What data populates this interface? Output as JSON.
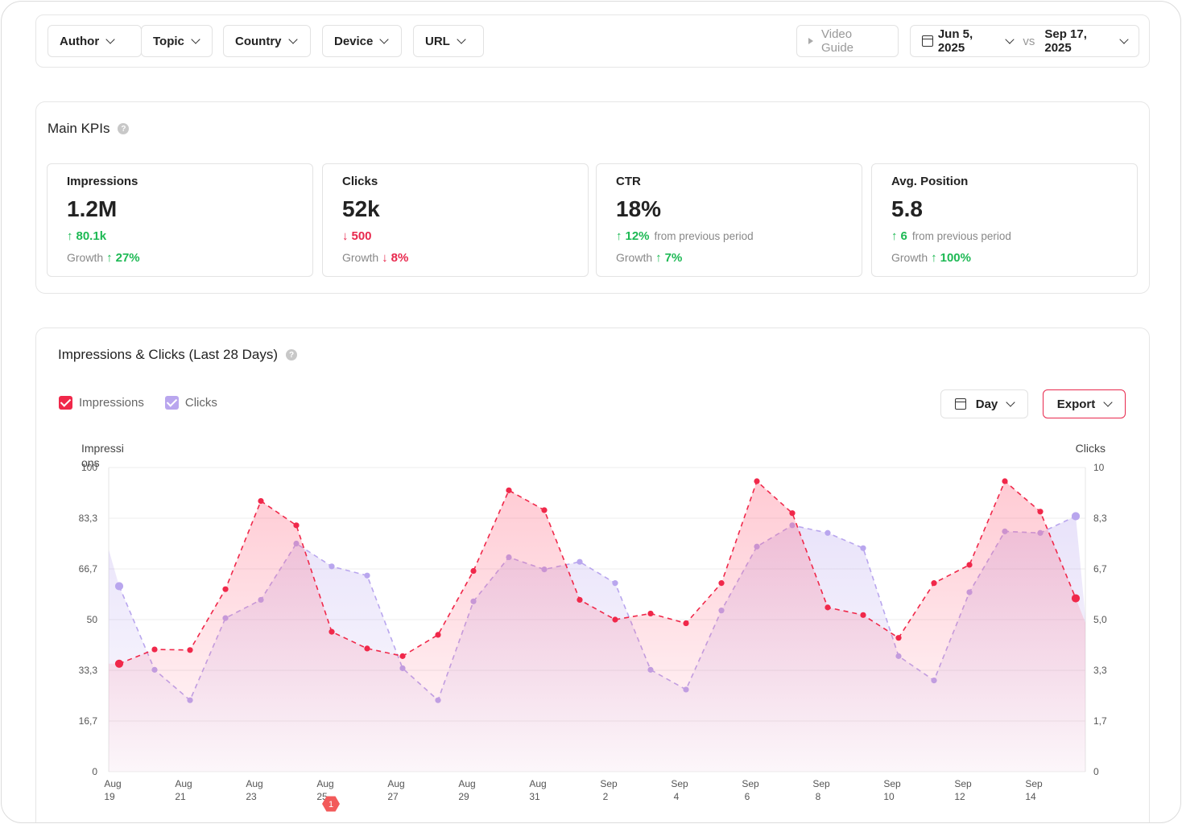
{
  "filters": {
    "author": "Author",
    "topic": "Topic",
    "country": "Country",
    "device": "Device",
    "url": "URL",
    "video_guide": "Video Guide",
    "date_from": "Jun 5, 2025",
    "vs": "vs",
    "date_to": "Sep 17, 2025"
  },
  "kpis": {
    "title": "Main KPIs",
    "help": "?",
    "growth_label": "Growth",
    "items": [
      {
        "name": "Impressions",
        "value": "1.2M",
        "delta_arrow": "↑",
        "delta": "80.1k",
        "delta_note": "",
        "growth_arrow": "↑",
        "growth": "27%",
        "delta_dir": "up",
        "growth_dir": "up"
      },
      {
        "name": "Clicks",
        "value": "52k",
        "delta_arrow": "↓",
        "delta": "500",
        "delta_note": "",
        "growth_arrow": "↓",
        "growth": "8%",
        "delta_dir": "down",
        "growth_dir": "down"
      },
      {
        "name": "CTR",
        "value": "18%",
        "delta_arrow": "↑",
        "delta": "12%",
        "delta_note": "from previous period",
        "growth_arrow": "↑",
        "growth": "7%",
        "delta_dir": "up",
        "growth_dir": "up"
      },
      {
        "name": "Avg. Position",
        "value": "5.8",
        "delta_arrow": "↑",
        "delta": "6",
        "delta_note": "from previous period",
        "growth_arrow": "↑",
        "growth": "100%",
        "delta_dir": "up",
        "growth_dir": "up"
      }
    ]
  },
  "chart_section": {
    "title": "Impressions & Clicks (Last 28 Days)",
    "help": "?",
    "legend_impressions": "Impressions",
    "legend_clicks": "Clicks",
    "granularity": "Day",
    "export": "Export"
  },
  "colors": {
    "impressions": "#f0284a",
    "clicks": "#b9a6ee",
    "up": "#1db954",
    "down": "#e8284d"
  },
  "chart_data": {
    "type": "line",
    "ylabel": "Impressions",
    "y2label": "Clicks",
    "ylim": [
      0,
      100
    ],
    "y2lim": [
      0,
      10
    ],
    "yticks": [
      "0",
      "16,7",
      "33,3",
      "50",
      "66,7",
      "83,3",
      "100"
    ],
    "y2ticks": [
      "0",
      "1,7",
      "3,3",
      "5,0",
      "6,7",
      "8,3",
      "10"
    ],
    "xticks": [
      [
        "Aug",
        "19"
      ],
      [
        "Aug",
        "21"
      ],
      [
        "Aug",
        "23"
      ],
      [
        "Aug",
        "25"
      ],
      [
        "Aug",
        "27"
      ],
      [
        "Aug",
        "29"
      ],
      [
        "Aug",
        "31"
      ],
      [
        "Sep",
        "2"
      ],
      [
        "Sep",
        "4"
      ],
      [
        "Sep",
        "6"
      ],
      [
        "Sep",
        "8"
      ],
      [
        "Sep",
        "10"
      ],
      [
        "Sep",
        "12"
      ],
      [
        "Sep",
        "14"
      ]
    ],
    "marker_badge": "1",
    "series": [
      {
        "name": "Impressions",
        "axis": "left",
        "values": [
          35.5,
          40.2,
          40,
          60,
          89,
          81,
          46,
          40.5,
          38,
          45,
          66,
          92.5,
          86,
          56.5,
          50,
          52,
          48.8,
          62,
          95.5,
          85,
          54,
          51.5,
          44,
          62,
          68,
          95.5,
          85.5,
          57
        ]
      },
      {
        "name": "Clicks",
        "axis": "right",
        "values": [
          6.1,
          3.35,
          2.35,
          5.05,
          5.65,
          7.5,
          6.75,
          6.45,
          3.4,
          2.35,
          5.6,
          7.05,
          6.65,
          6.9,
          6.2,
          3.35,
          2.7,
          5.3,
          7.4,
          8.1,
          7.85,
          7.35,
          3.8,
          3.0,
          5.9,
          7.9,
          7.85,
          8.4
        ]
      }
    ]
  }
}
